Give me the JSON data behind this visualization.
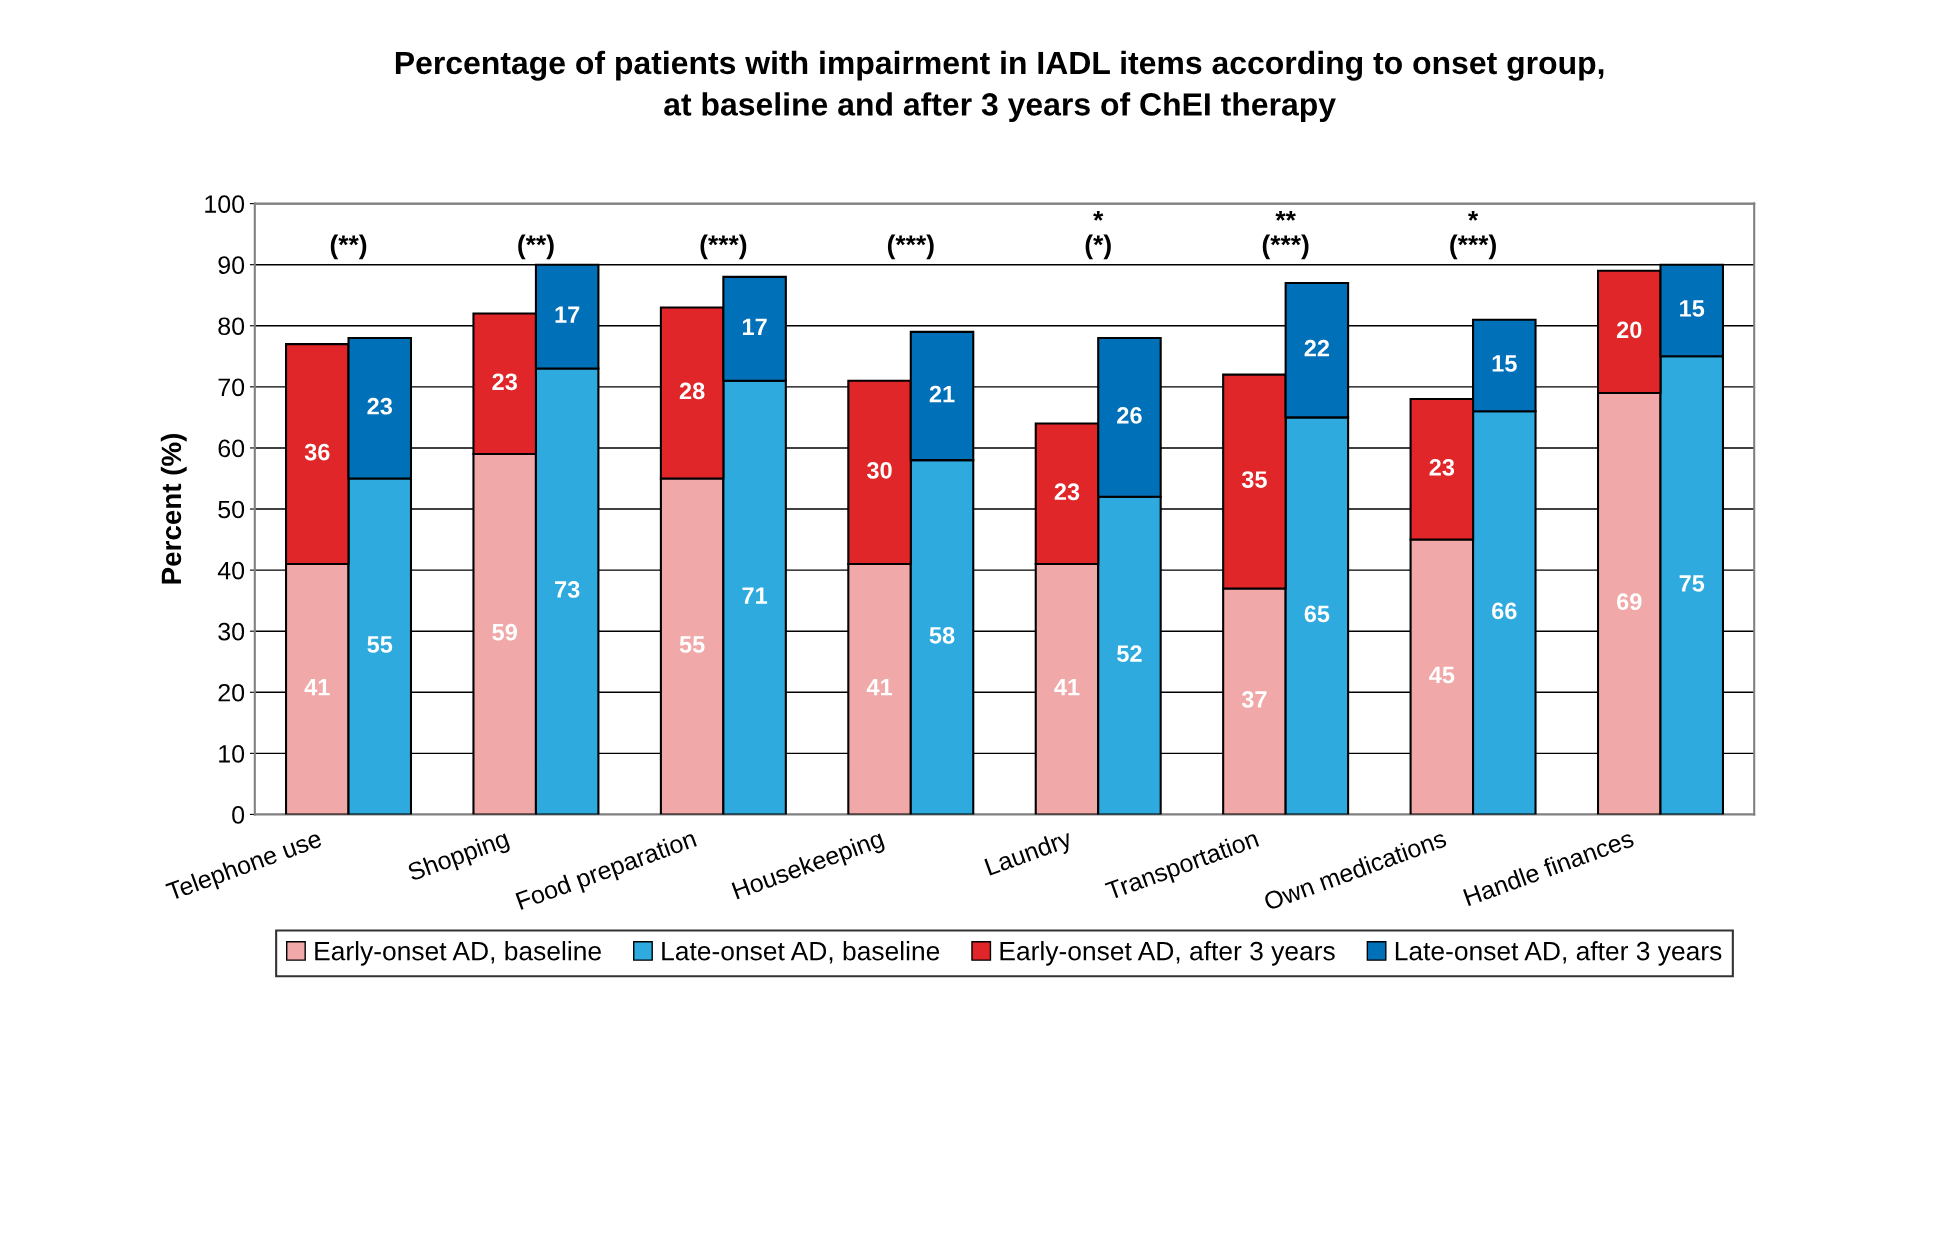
{
  "chart_data": {
    "type": "bar",
    "title": "Percentage of patients with impairment in IADL items according to onset group,\nat baseline and after 3 years of ChEI therapy",
    "ylabel": "Percent (%)",
    "categories": [
      "Telephone use",
      null,
      null,
      "Shopping",
      null,
      null,
      "Food preparation",
      null,
      null,
      "Housekeeping",
      null,
      null,
      "Laundry",
      null,
      null,
      "Transportation",
      null,
      null,
      "Own medications",
      null,
      null,
      "Handle finances",
      null
    ],
    "stacked": true,
    "series": [
      {
        "name": "Early-onset AD, baseline",
        "color": "#f0a8a8",
        "values": [
          41,
          null,
          null,
          59,
          null,
          null,
          55,
          null,
          null,
          41,
          null,
          null,
          41,
          null,
          null,
          37,
          null,
          null,
          45,
          null,
          null,
          69,
          null
        ]
      },
      {
        "name": "Late-onset AD, baseline",
        "color": "#2eaadf",
        "values": [
          null,
          55,
          null,
          null,
          73,
          null,
          null,
          71,
          null,
          null,
          58,
          null,
          null,
          52,
          null,
          null,
          65,
          null,
          null,
          66,
          null,
          null,
          75
        ]
      },
      {
        "name": "Early-onset AD, after 3 years",
        "color": "#e02628",
        "values": [
          36,
          null,
          null,
          23,
          null,
          null,
          28,
          null,
          null,
          30,
          null,
          null,
          23,
          null,
          null,
          35,
          null,
          null,
          23,
          null,
          null,
          20,
          null
        ]
      },
      {
        "name": "Late-onset AD, after 3 years",
        "color": "#0070b8",
        "values": [
          null,
          23,
          null,
          null,
          17,
          null,
          null,
          17,
          null,
          null,
          21,
          null,
          null,
          26,
          null,
          null,
          22,
          null,
          null,
          15,
          null,
          null,
          15
        ]
      }
    ],
    "ylim": [
      0,
      100
    ],
    "yticks": [
      0,
      10,
      20,
      30,
      40,
      50,
      60,
      70,
      80,
      90,
      100
    ],
    "grid": "y",
    "legend": "bottom",
    "data_labels": true,
    "annotations": [
      "(**)",
      "(**)",
      "(***)",
      "(***)",
      "*\n(*)",
      "**\n(***)",
      "*\n(***)"
    ]
  }
}
